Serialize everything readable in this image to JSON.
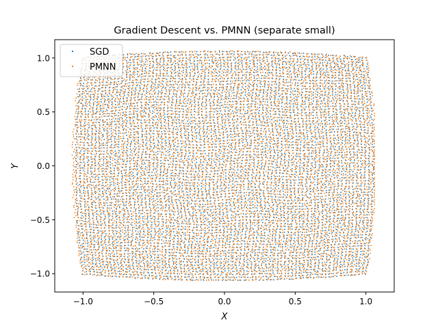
{
  "chart_data": {
    "type": "scatter",
    "title": "Gradient Descent vs. PMNN (separate small)",
    "xlabel": "X",
    "ylabel": "Y",
    "xlim": [
      -1.2,
      1.2
    ],
    "ylim": [
      -1.17,
      1.17
    ],
    "xticks": [
      -1.0,
      -0.5,
      0.0,
      0.5,
      1.0
    ],
    "yticks": [
      -1.0,
      -0.5,
      0.0,
      0.5,
      1.0
    ],
    "xtick_labels": [
      "−1.0",
      "−0.5",
      "0.0",
      "0.5",
      "1.0"
    ],
    "ytick_labels": [
      "−1.0",
      "−0.5",
      "0.0",
      "0.5",
      "1.0"
    ],
    "legend_position": "upper-left",
    "grid": false,
    "series": [
      {
        "name": "SGD",
        "color": "#1f77b4",
        "point_count": 10000,
        "x_range": [
          -1.06,
          1.06
        ],
        "y_range": [
          -1.06,
          1.06
        ],
        "description_shape": "square domain [-1,1]x[-1,1] with slightly bulged edges",
        "sample_points": [
          {
            "x": -1.0,
            "y": -1.0
          },
          {
            "x": -1.0,
            "y": 1.0
          },
          {
            "x": 1.0,
            "y": 1.0
          },
          {
            "x": 1.0,
            "y": -1.0
          },
          {
            "x": -0.9,
            "y": 0.93
          },
          {
            "x": 0.93,
            "y": 0.93
          },
          {
            "x": -0.93,
            "y": -0.93
          },
          {
            "x": 0.93,
            "y": -0.93
          },
          {
            "x": 0.0,
            "y": 1.06
          },
          {
            "x": 0.0,
            "y": -1.06
          },
          {
            "x": -1.06,
            "y": 0.0
          },
          {
            "x": 1.06,
            "y": 0.0
          }
        ]
      },
      {
        "name": "PMNN",
        "color": "#ff7f0e",
        "point_count": 10000,
        "x_range": [
          -1.1,
          1.06
        ],
        "y_range": [
          -1.06,
          1.08
        ],
        "description_shape": "square domain [-1,1]x[-1,1] with slightly bulged edges",
        "sample_points": [
          {
            "x": -1.0,
            "y": -1.0
          },
          {
            "x": -1.0,
            "y": 1.0
          },
          {
            "x": 1.0,
            "y": 1.0
          },
          {
            "x": 1.0,
            "y": -1.0
          },
          {
            "x": 0.0,
            "y": 1.08
          },
          {
            "x": 0.0,
            "y": -1.06
          },
          {
            "x": -1.1,
            "y": -0.2
          },
          {
            "x": 1.05,
            "y": -0.3
          }
        ]
      }
    ]
  }
}
